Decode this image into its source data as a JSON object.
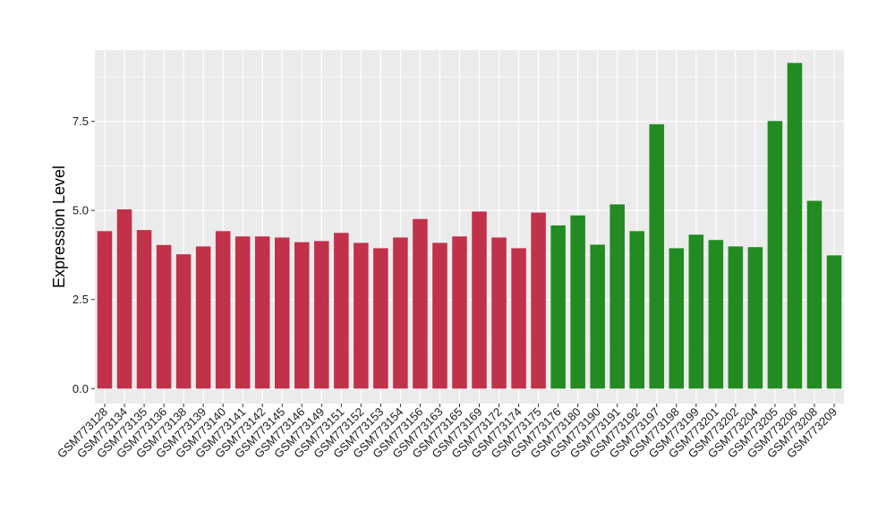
{
  "chart_data": {
    "type": "bar",
    "title": "",
    "xlabel": "",
    "ylabel": "Expression Level",
    "ylim": [
      -0.42,
      9.5
    ],
    "yticks": [
      0.0,
      2.5,
      5.0,
      7.5
    ],
    "ytick_labels": [
      "0.0",
      "2.5",
      "5.0",
      "7.5"
    ],
    "grid": true,
    "legend": "none",
    "colors": {
      "group1": "#c2314a",
      "group2": "#228b22",
      "panel": "#ebebeb",
      "grid": "#ffffff"
    },
    "categories": [
      "GSM773128",
      "GSM773134",
      "GSM773135",
      "GSM773136",
      "GSM773138",
      "GSM773139",
      "GSM773140",
      "GSM773141",
      "GSM773142",
      "GSM773145",
      "GSM773146",
      "GSM773149",
      "GSM773151",
      "GSM773152",
      "GSM773153",
      "GSM773154",
      "GSM773156",
      "GSM773163",
      "GSM773165",
      "GSM773169",
      "GSM773172",
      "GSM773174",
      "GSM773175",
      "GSM773176",
      "GSM773180",
      "GSM773190",
      "GSM773191",
      "GSM773192",
      "GSM773197",
      "GSM773198",
      "GSM773199",
      "GSM773201",
      "GSM773202",
      "GSM773204",
      "GSM773205",
      "GSM773206",
      "GSM773208",
      "GSM773209"
    ],
    "values": [
      4.42,
      5.03,
      4.45,
      4.03,
      3.77,
      3.99,
      4.42,
      4.27,
      4.27,
      4.24,
      4.11,
      4.14,
      4.37,
      4.09,
      3.94,
      4.24,
      4.76,
      4.09,
      4.27,
      4.97,
      4.24,
      3.94,
      4.94,
      4.58,
      4.86,
      4.04,
      5.17,
      4.42,
      7.42,
      3.94,
      4.32,
      4.17,
      3.99,
      3.97,
      7.51,
      9.14,
      5.27,
      3.74
    ],
    "groups": [
      "group1",
      "group1",
      "group1",
      "group1",
      "group1",
      "group1",
      "group1",
      "group1",
      "group1",
      "group1",
      "group1",
      "group1",
      "group1",
      "group1",
      "group1",
      "group1",
      "group1",
      "group1",
      "group1",
      "group1",
      "group1",
      "group1",
      "group1",
      "group2",
      "group2",
      "group2",
      "group2",
      "group2",
      "group2",
      "group2",
      "group2",
      "group2",
      "group2",
      "group2",
      "group2",
      "group2",
      "group2",
      "group2"
    ]
  }
}
